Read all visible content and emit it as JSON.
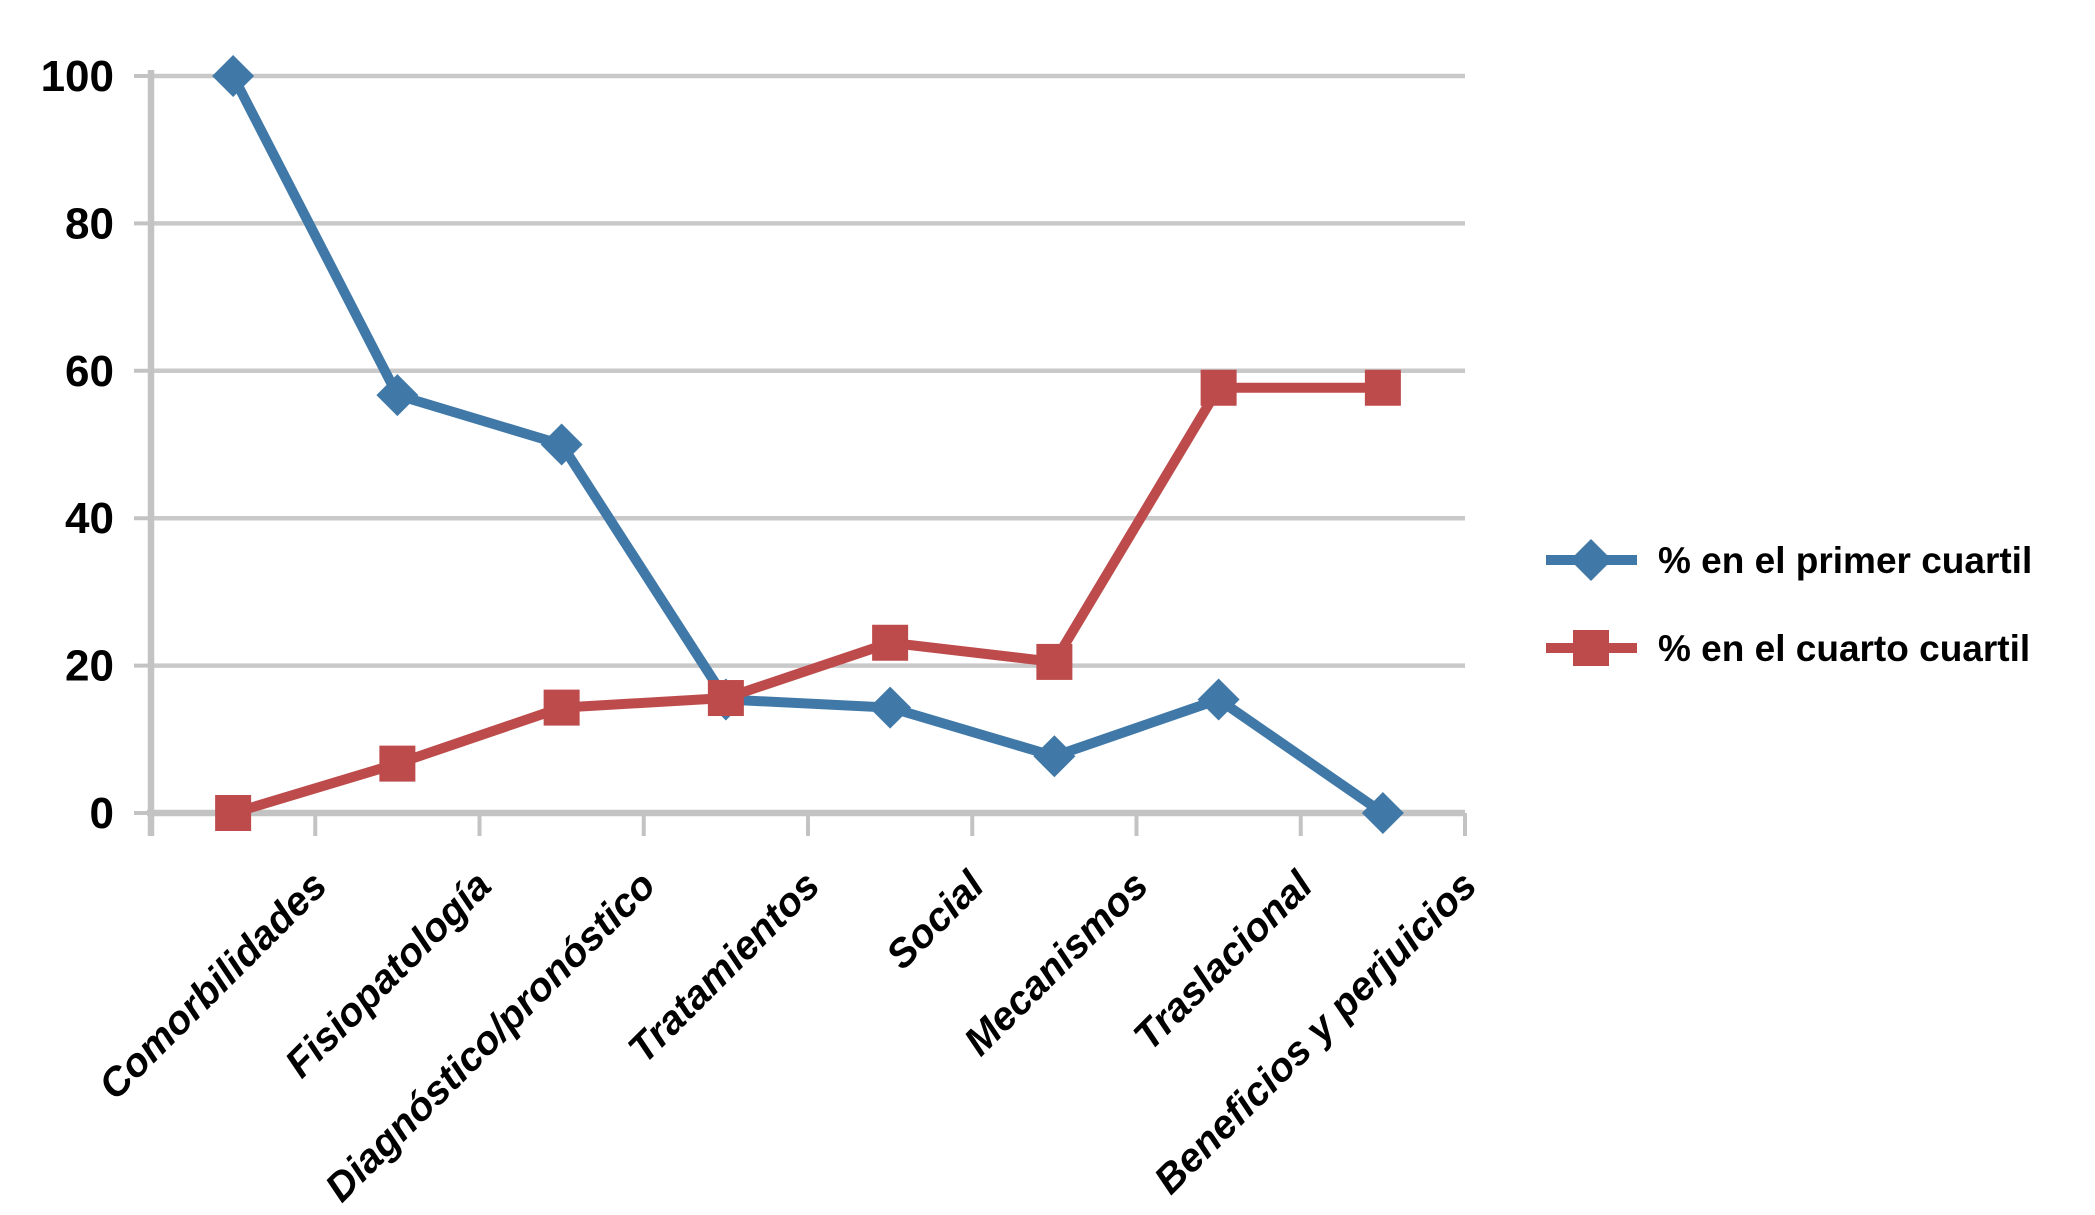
{
  "chart_data": {
    "type": "line",
    "title": "",
    "xlabel": "",
    "ylabel": "",
    "categories": [
      "Comorbilidades",
      "Fisiopatología",
      "Diagnóstico/pronóstico",
      "Tratamientos",
      "Social",
      "Mecanismos",
      "Traslacional",
      "Beneficios y perjuicios"
    ],
    "series": [
      {
        "name": "% en el primer cuartil",
        "marker": "diamond",
        "color": "#4079A8",
        "values": [
          100,
          56.7,
          50,
          15.4,
          14.3,
          7.7,
          15.4,
          0
        ]
      },
      {
        "name": "% en el cuarto cuartil",
        "marker": "square",
        "color": "#BE4B4C",
        "values": [
          0,
          6.7,
          14.3,
          15.6,
          23.1,
          20.5,
          57.7,
          57.7
        ]
      }
    ],
    "yticks": [
      0,
      20,
      40,
      60,
      80,
      100
    ],
    "ylim": [
      0,
      100
    ],
    "grid": "horizontal",
    "legend_position": "right",
    "grid_color": "#C9C9C9",
    "axis_color": "#C3C3C3",
    "text_color": "#000000",
    "background_color": "#FFFFFF"
  }
}
